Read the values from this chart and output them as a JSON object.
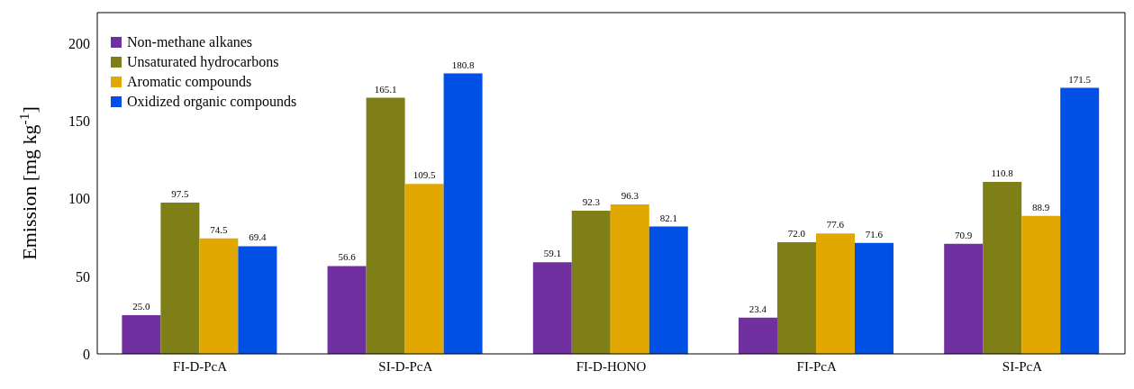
{
  "chart_data": {
    "type": "bar",
    "ylabel": "Emission [mg kg$^{-1}$]",
    "categories": [
      "FI-D-PcA",
      "SI-D-PcA",
      "FI-D-HONO",
      "FI-PcA",
      "SI-PcA"
    ],
    "series": [
      {
        "name": "Non-methane alkanes",
        "color": "#7030a0",
        "values": [
          25.0,
          56.6,
          59.1,
          23.4,
          70.9
        ],
        "value_labels": [
          "25.0",
          "56.6",
          "59.1",
          "23.4",
          "70.9"
        ]
      },
      {
        "name": "Unsaturated hydrocarbons",
        "color": "#7f7f18",
        "values": [
          97.5,
          165.1,
          92.3,
          72.0,
          110.8
        ],
        "value_labels": [
          "97.5",
          "165.1",
          "92.3",
          "72.0",
          "110.8"
        ]
      },
      {
        "name": "Aromatic compounds",
        "color": "#e0a800",
        "values": [
          74.5,
          109.5,
          96.3,
          77.6,
          88.9
        ],
        "value_labels": [
          "74.5",
          "109.5",
          "96.3",
          "77.6",
          "88.9"
        ]
      },
      {
        "name": "Oxidized organic compounds",
        "color": "#0050e6",
        "values": [
          69.4,
          180.8,
          82.1,
          71.6,
          171.5
        ],
        "value_labels": [
          "69.4",
          "180.8",
          "82.1",
          "71.6",
          "171.5"
        ]
      }
    ],
    "ylim": [
      0,
      220
    ],
    "yticks": [
      0,
      50,
      100,
      150,
      200
    ],
    "grid": false,
    "legend": "top left"
  }
}
